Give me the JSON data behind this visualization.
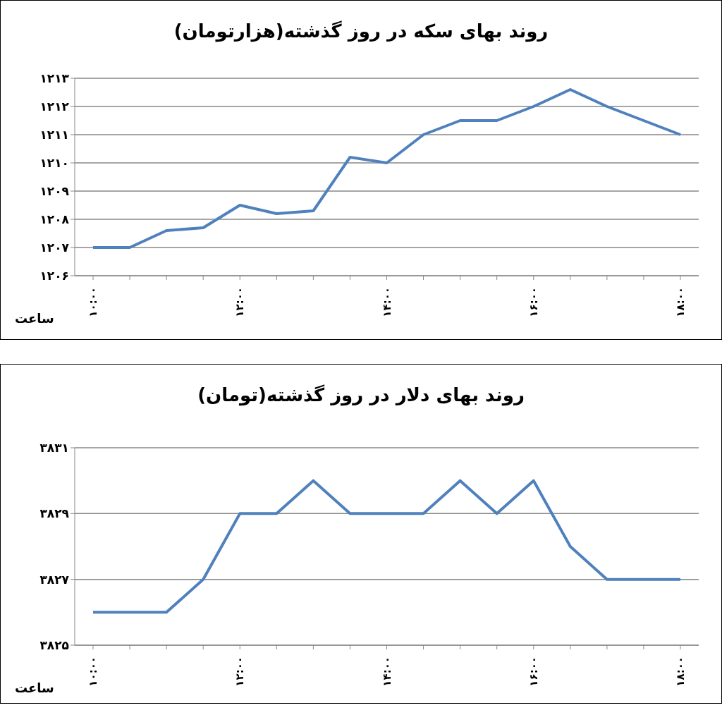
{
  "chart_data": [
    {
      "type": "line",
      "title": "روند بهای سکه در روز گذشته(هزارتومان)",
      "xlabel": "ساعت",
      "categories": [
        "۱۰:۰۰",
        null,
        null,
        null,
        "۱۲:۰۰",
        null,
        null,
        null,
        "۱۴:۰۰",
        null,
        null,
        null,
        "۱۶:۰۰",
        null,
        null,
        null,
        "۱۸:۰۰"
      ],
      "series": [
        {
          "color": "#4f81bd",
          "values": [
            1207,
            1207,
            1207.6,
            1207.7,
            1208.5,
            1208.2,
            1208.3,
            1210.2,
            1210,
            1211,
            1211.5,
            1211.5,
            1212,
            1212.6,
            1212,
            1211.5,
            1211
          ]
        }
      ],
      "ylim": [
        1206,
        1213
      ],
      "yticks": [
        {
          "value": 1206,
          "label": "۱۲۰۶"
        },
        {
          "value": 1207,
          "label": "۱۲۰۷"
        },
        {
          "value": 1208,
          "label": "۱۲۰۸"
        },
        {
          "value": 1209,
          "label": "۱۲۰۹"
        },
        {
          "value": 1210,
          "label": "۱۲۱۰"
        },
        {
          "value": 1211,
          "label": "۱۲۱۱"
        },
        {
          "value": 1212,
          "label": "۱۲۱۲"
        },
        {
          "value": 1213,
          "label": "۱۲۱۳"
        }
      ],
      "grid": "y",
      "legend": false,
      "marker": "none",
      "line_style": "solid"
    },
    {
      "type": "line",
      "title": "روند بهای دلار در روز گذشته(تومان)",
      "xlabel": "ساعت",
      "categories": [
        "۱۰:۰۰",
        null,
        null,
        null,
        "۱۲:۰۰",
        null,
        null,
        null,
        "۱۴:۰۰",
        null,
        null,
        null,
        "۱۶:۰۰",
        null,
        null,
        null,
        "۱۸:۰۰"
      ],
      "series": [
        {
          "color": "#4f81bd",
          "values": [
            3826,
            3826,
            3826,
            3827,
            3829,
            3829,
            3830,
            3829,
            3829,
            3829,
            3830,
            3829,
            3830,
            3828,
            3827,
            3827,
            3827
          ]
        }
      ],
      "ylim": [
        3825,
        3831
      ],
      "yticks": [
        {
          "value": 3825,
          "label": "۳۸۲۵"
        },
        {
          "value": 3827,
          "label": "۳۸۲۷"
        },
        {
          "value": 3829,
          "label": "۳۸۲۹"
        },
        {
          "value": 3831,
          "label": "۳۸۳۱"
        }
      ],
      "grid": "y",
      "legend": false,
      "marker": "none",
      "line_style": "solid"
    }
  ]
}
